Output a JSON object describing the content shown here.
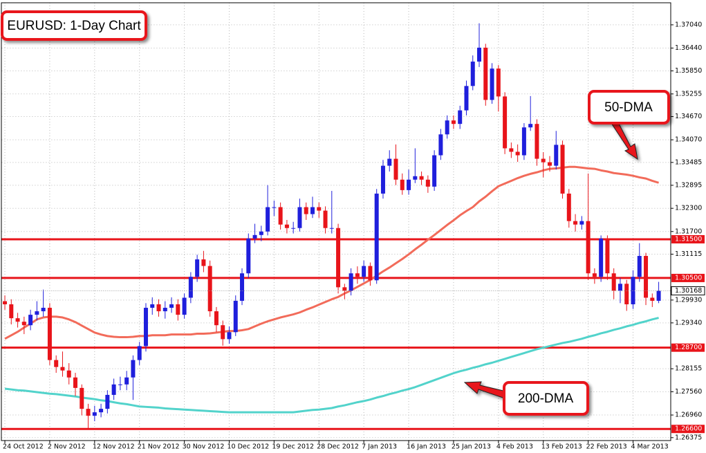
{
  "chart_data": {
    "type": "candlestick",
    "title": "EURUSD: 1-Day Chart",
    "categories": [
      "24 Oct 2012",
      null,
      null,
      null,
      null,
      null,
      null,
      "2 Nov 2012",
      null,
      null,
      null,
      null,
      null,
      null,
      "12 Nov 2012",
      null,
      null,
      null,
      null,
      null,
      null,
      "21 Nov 2012",
      null,
      null,
      null,
      null,
      null,
      null,
      "30 Nov 2012",
      null,
      null,
      null,
      null,
      null,
      null,
      "10 Dec 2012",
      null,
      null,
      null,
      null,
      null,
      null,
      "19 Dec 2012",
      null,
      null,
      null,
      null,
      null,
      null,
      "28 Dec 2012",
      null,
      null,
      null,
      null,
      null,
      null,
      "7 Jan 2013",
      null,
      null,
      null,
      null,
      null,
      null,
      "16 Jan 2013",
      null,
      null,
      null,
      null,
      null,
      null,
      "25 Jan 2013",
      null,
      null,
      null,
      null,
      null,
      null,
      "4 Feb 2013",
      null,
      null,
      null,
      null,
      null,
      null,
      "13 Feb 2013",
      null,
      null,
      null,
      null,
      null,
      null,
      "22 Feb 2013",
      null,
      null,
      null,
      null,
      null,
      null,
      "4 Mar 2013",
      null,
      null,
      null,
      null
    ],
    "open": [
      1.299,
      1.2982,
      1.2946,
      1.2937,
      1.2928,
      1.2955,
      1.2964,
      1.2973,
      1.2838,
      1.282,
      1.2811,
      1.2793,
      1.2766,
      1.2712,
      1.2694,
      1.2703,
      1.2712,
      1.2748,
      1.2775,
      1.2775,
      1.2793,
      1.2838,
      1.2874,
      1.2973,
      1.2982,
      1.2964,
      1.2973,
      1.2982,
      1.2955,
      1.2999,
      1.3053,
      1.3098,
      1.3081,
      1.2964,
      1.2928,
      1.2892,
      1.291,
      1.2991,
      1.3062,
      1.3152,
      1.3161,
      1.317,
      1.3233,
      1.3233,
      1.3188,
      1.3179,
      1.3179,
      1.3233,
      1.3215,
      1.3233,
      1.3224,
      1.3179,
      1.3179,
      1.3026,
      1.3017,
      1.3062,
      1.3053,
      1.3081,
      1.3044,
      1.3268,
      1.334,
      1.3358,
      1.3304,
      1.3277,
      1.3304,
      1.3313,
      1.3304,
      1.3286,
      1.3367,
      1.3421,
      1.3457,
      1.3448,
      1.3483,
      1.3546,
      1.3609,
      1.3645,
      1.351,
      1.3591,
      1.3519,
      1.3385,
      1.3376,
      1.3367,
      1.3439,
      1.3448,
      1.3358,
      1.3349,
      1.334,
      1.3394,
      1.3268,
      1.3197,
      1.3188,
      1.3197,
      1.3062,
      1.3053,
      1.3152,
      1.3062,
      1.3017,
      1.3035,
      1.2982,
      1.3053,
      1.3107,
      1.2999,
      1.2991
    ],
    "high": [
      1.3005,
      1.2995,
      1.296,
      1.295,
      1.2968,
      1.299,
      1.302,
      1.2985,
      1.285,
      1.286,
      1.283,
      1.2805,
      1.2775,
      1.2725,
      1.272,
      1.2725,
      1.276,
      1.279,
      1.2795,
      1.281,
      1.285,
      1.2885,
      1.2985,
      1.3,
      1.2995,
      1.299,
      1.3,
      1.2995,
      1.301,
      1.3065,
      1.311,
      1.312,
      1.3095,
      1.2975,
      1.294,
      1.2925,
      1.3005,
      1.3075,
      1.3165,
      1.319,
      1.3185,
      1.329,
      1.325,
      1.3245,
      1.32,
      1.3195,
      1.3255,
      1.3245,
      1.326,
      1.3245,
      1.3235,
      1.3275,
      1.319,
      1.3035,
      1.3075,
      1.308,
      1.3095,
      1.309,
      1.328,
      1.3355,
      1.338,
      1.3395,
      1.332,
      1.333,
      1.3385,
      1.3325,
      1.3315,
      1.338,
      1.3435,
      1.347,
      1.347,
      1.3495,
      1.356,
      1.3625,
      1.3708,
      1.3655,
      1.3605,
      1.36,
      1.353,
      1.34,
      1.3395,
      1.345,
      1.352,
      1.346,
      1.3375,
      1.3365,
      1.343,
      1.3405,
      1.328,
      1.3215,
      1.321,
      1.332,
      1.3075,
      1.316,
      1.316,
      1.3075,
      1.305,
      1.3045,
      1.307,
      1.314,
      1.3115,
      1.301,
      1.304
    ],
    "low": [
      1.2968,
      1.293,
      1.2922,
      1.2905,
      1.2915,
      1.294,
      1.295,
      1.2825,
      1.2805,
      1.2795,
      1.2775,
      1.2745,
      1.2695,
      1.2662,
      1.268,
      1.269,
      1.27,
      1.2735,
      1.276,
      1.276,
      1.2735,
      1.2825,
      1.286,
      1.2955,
      1.295,
      1.2945,
      1.296,
      1.294,
      1.2945,
      1.2985,
      1.304,
      1.3065,
      1.295,
      1.291,
      1.2875,
      1.288,
      1.29,
      1.298,
      1.305,
      1.314,
      1.3145,
      1.316,
      1.321,
      1.3175,
      1.3165,
      1.3165,
      1.317,
      1.32,
      1.3205,
      1.3205,
      1.3165,
      1.3165,
      1.301,
      1.2995,
      1.3005,
      1.3035,
      1.304,
      1.303,
      1.3035,
      1.3255,
      1.3325,
      1.329,
      1.3265,
      1.3265,
      1.3295,
      1.329,
      1.327,
      1.3275,
      1.3355,
      1.341,
      1.3435,
      1.3435,
      1.347,
      1.3535,
      1.3595,
      1.3495,
      1.35,
      1.348,
      1.337,
      1.336,
      1.335,
      1.3355,
      1.343,
      1.334,
      1.331,
      1.3325,
      1.333,
      1.3255,
      1.318,
      1.317,
      1.3175,
      1.3045,
      1.3035,
      1.304,
      1.3045,
      1.2995,
      1.2985,
      1.2965,
      1.297,
      1.304,
      1.298,
      1.2975,
      1.2985
    ],
    "close": [
      1.2982,
      1.2946,
      1.2937,
      1.2928,
      1.2955,
      1.2964,
      1.2973,
      1.2838,
      1.282,
      1.2811,
      1.2793,
      1.2766,
      1.2712,
      1.2694,
      1.2703,
      1.2712,
      1.2748,
      1.2775,
      1.2775,
      1.2793,
      1.2838,
      1.2874,
      1.2973,
      1.2982,
      1.2964,
      1.2973,
      1.2982,
      1.2955,
      1.2999,
      1.3053,
      1.3098,
      1.3081,
      1.2964,
      1.2928,
      1.2892,
      1.291,
      1.2991,
      1.3062,
      1.3152,
      1.3161,
      1.317,
      1.3233,
      1.3233,
      1.3188,
      1.3179,
      1.3179,
      1.3233,
      1.3215,
      1.3233,
      1.3224,
      1.3179,
      1.3179,
      1.3026,
      1.3017,
      1.3062,
      1.3053,
      1.3081,
      1.3044,
      1.3268,
      1.334,
      1.3358,
      1.3304,
      1.3277,
      1.3304,
      1.3313,
      1.3304,
      1.3286,
      1.3367,
      1.3421,
      1.3457,
      1.3448,
      1.3483,
      1.3546,
      1.3609,
      1.3645,
      1.351,
      1.3591,
      1.3519,
      1.3385,
      1.3376,
      1.3367,
      1.3439,
      1.3448,
      1.3358,
      1.3349,
      1.334,
      1.3394,
      1.3268,
      1.3197,
      1.3188,
      1.3197,
      1.3062,
      1.3053,
      1.3152,
      1.3062,
      1.3017,
      1.3035,
      1.2982,
      1.3053,
      1.3107,
      1.2999,
      1.2991,
      1.3017
    ],
    "up_color": "#1f1fdc",
    "down_color": "#e8141a",
    "series": [
      {
        "name": "50-DMA",
        "color": "#f26b5a",
        "values": [
          1.2893,
          1.2902,
          1.2911,
          1.2922,
          1.2932,
          1.2943,
          1.2948,
          1.295,
          1.295,
          1.2948,
          1.2943,
          1.2936,
          1.2927,
          1.2918,
          1.2909,
          1.2904,
          1.29,
          1.2898,
          1.2897,
          1.2897,
          1.2898,
          1.29,
          1.29,
          1.2902,
          1.2902,
          1.2902,
          1.2904,
          1.2904,
          1.2904,
          1.2904,
          1.2906,
          1.2906,
          1.2907,
          1.2909,
          1.2911,
          1.2913,
          1.2913,
          1.2915,
          1.2918,
          1.2925,
          1.2932,
          1.2938,
          1.2943,
          1.2948,
          1.2952,
          1.2956,
          1.2961,
          1.2968,
          1.2974,
          1.2981,
          1.2988,
          1.2995,
          1.3001,
          1.301,
          1.3018,
          1.3027,
          1.3036,
          1.3045,
          1.3056,
          1.3067,
          1.3077,
          1.3088,
          1.3099,
          1.3111,
          1.3124,
          1.3136,
          1.3149,
          1.3161,
          1.3174,
          1.3187,
          1.3199,
          1.3212,
          1.3223,
          1.3233,
          1.3248,
          1.326,
          1.3274,
          1.3287,
          1.3294,
          1.3301,
          1.3308,
          1.3314,
          1.3319,
          1.3323,
          1.3328,
          1.3332,
          1.3333,
          1.3335,
          1.3337,
          1.3337,
          1.3335,
          1.3333,
          1.3332,
          1.3328,
          1.3325,
          1.3321,
          1.3319,
          1.3317,
          1.3314,
          1.331,
          1.3307,
          1.3301,
          1.3296
        ]
      },
      {
        "name": "200-DMA",
        "color": "#52d3cb",
        "values": [
          1.2764,
          1.2762,
          1.276,
          1.2759,
          1.2757,
          1.2755,
          1.2753,
          1.2751,
          1.275,
          1.2748,
          1.2746,
          1.2744,
          1.2741,
          1.2739,
          1.2737,
          1.2734,
          1.2732,
          1.2729,
          1.2726,
          1.2724,
          1.2721,
          1.2718,
          1.2717,
          1.2716,
          1.2715,
          1.2713,
          1.2712,
          1.2711,
          1.271,
          1.2709,
          1.2708,
          1.2707,
          1.2706,
          1.2705,
          1.2704,
          1.2703,
          1.2703,
          1.2703,
          1.2703,
          1.2703,
          1.2703,
          1.2703,
          1.2703,
          1.2703,
          1.2703,
          1.2703,
          1.2705,
          1.2707,
          1.2709,
          1.271,
          1.2712,
          1.2714,
          1.2718,
          1.2721,
          1.2725,
          1.2729,
          1.2732,
          1.2736,
          1.2741,
          1.2745,
          1.275,
          1.2754,
          1.2759,
          1.2763,
          1.2768,
          1.2774,
          1.278,
          1.2786,
          1.2792,
          1.2798,
          1.2804,
          1.2809,
          1.2813,
          1.2818,
          1.2822,
          1.2827,
          1.2831,
          1.2836,
          1.2841,
          1.2846,
          1.2851,
          1.2856,
          1.2861,
          1.2866,
          1.287,
          1.2874,
          1.2878,
          1.2882,
          1.2885,
          1.2889,
          1.2893,
          1.2898,
          1.2902,
          1.2907,
          1.2911,
          1.2916,
          1.292,
          1.2925,
          1.2929,
          1.2934,
          1.2938,
          1.2943,
          1.2947
        ]
      }
    ],
    "levels": [
      {
        "value": 1.315,
        "label": "1.31500"
      },
      {
        "value": 1.305,
        "label": "1.30500"
      },
      {
        "value": 1.287,
        "label": "1.28700"
      },
      {
        "value": 1.266,
        "label": "1.26600"
      }
    ],
    "last_price": {
      "value": 1.30168,
      "label": "1.30168"
    },
    "ylim": [
      1.263,
      1.3761
    ],
    "yticks": [
      {
        "value": 1.3704,
        "label": "1.37040"
      },
      {
        "value": 1.3644,
        "label": "1.36440"
      },
      {
        "value": 1.3585,
        "label": "1.35850"
      },
      {
        "value": 1.35255,
        "label": "1.35255"
      },
      {
        "value": 1.3467,
        "label": "1.34670"
      },
      {
        "value": 1.3407,
        "label": "1.34070"
      },
      {
        "value": 1.33485,
        "label": "1.33485"
      },
      {
        "value": 1.32895,
        "label": "1.32895"
      },
      {
        "value": 1.323,
        "label": "1.32300"
      },
      {
        "value": 1.317,
        "label": "1.31700"
      },
      {
        "value": 1.31115,
        "label": "1.31115"
      },
      {
        "value": 1.2993,
        "label": "1.29930"
      },
      {
        "value": 1.2934,
        "label": "1.29340"
      },
      {
        "value": 1.28155,
        "label": "1.28155"
      },
      {
        "value": 1.2756,
        "label": "1.27560"
      },
      {
        "value": 1.2696,
        "label": "1.26960"
      },
      {
        "value": 1.26375,
        "label": "1.26375"
      }
    ],
    "grid": true
  }
}
